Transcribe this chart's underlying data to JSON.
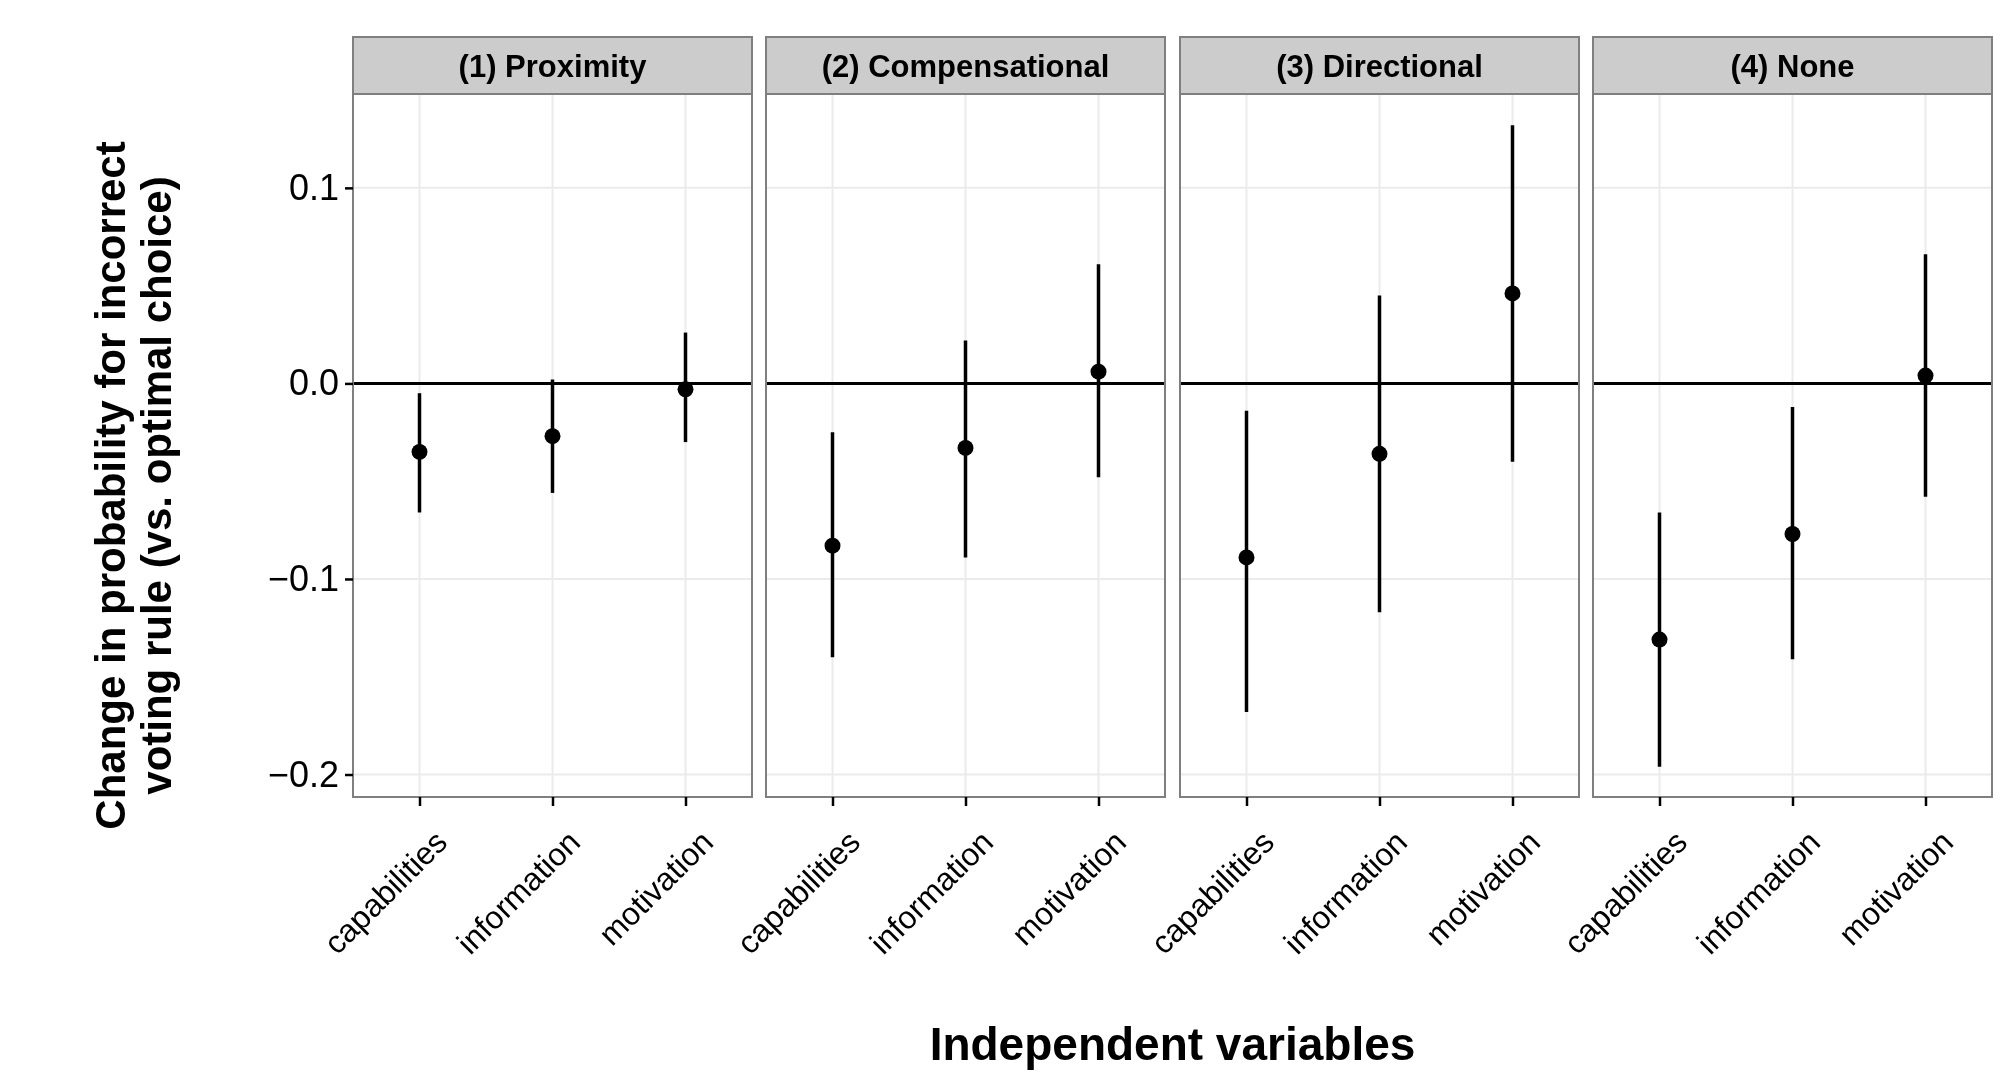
{
  "chart_data": [
    {
      "type": "scatter",
      "title": "(1) Proximity",
      "xlabel": "Independent variables",
      "ylabel": "Change in probability for incorrect\nvoting rule (vs. optimal choice)",
      "categories": [
        "capabilities",
        "information",
        "motivation"
      ],
      "series": [
        {
          "color": "#000000",
          "values": [
            -0.035,
            -0.027,
            -0.003
          ],
          "errors": [
            [
              -0.066,
              -0.005
            ],
            [
              -0.056,
              0.002
            ],
            [
              -0.03,
              0.026
            ]
          ]
        }
      ],
      "ylim": [
        -0.2115,
        0.148
      ],
      "yticks": [
        {
          "value": -0.2,
          "label": "−0.2"
        },
        {
          "value": -0.1,
          "label": "−0.1"
        },
        {
          "value": 0,
          "label": "0.0"
        },
        0.1
      ],
      "ref_lines": [
        {
          "axis": "y",
          "value": 0,
          "color": "#000000"
        }
      ],
      "grid": true,
      "marker": "circle"
    },
    {
      "type": "scatter",
      "title": "(2) Compensational",
      "categories": [
        "capabilities",
        "information",
        "motivation"
      ],
      "series": [
        {
          "color": "#000000",
          "values": [
            -0.083,
            -0.033,
            0.006
          ],
          "errors": [
            [
              -0.14,
              -0.025
            ],
            [
              -0.089,
              0.022
            ],
            [
              -0.048,
              0.061
            ]
          ]
        }
      ],
      "ylim": [
        -0.2115,
        0.148
      ],
      "yticks": [
        {
          "value": -0.2,
          "label": null
        },
        {
          "value": -0.1,
          "label": null
        },
        {
          "value": 0,
          "label": null
        },
        {
          "value": 0.1,
          "label": null
        }
      ],
      "tick_labels": "x",
      "ref_lines": [
        {
          "axis": "y",
          "value": 0,
          "color": "#000000"
        }
      ],
      "grid": true,
      "marker": "circle"
    },
    {
      "type": "scatter",
      "title": "(3) Directional",
      "categories": [
        "capabilities",
        "information",
        "motivation"
      ],
      "series": [
        {
          "color": "#000000",
          "values": [
            -0.089,
            -0.036,
            0.046
          ],
          "errors": [
            [
              -0.168,
              -0.014
            ],
            [
              -0.117,
              0.045
            ],
            [
              -0.04,
              0.132
            ]
          ]
        }
      ],
      "ylim": [
        -0.2115,
        0.148
      ],
      "yticks": [
        {
          "value": -0.2,
          "label": null
        },
        {
          "value": -0.1,
          "label": null
        },
        {
          "value": 0,
          "label": null
        },
        {
          "value": 0.1,
          "label": null
        }
      ],
      "tick_labels": "x",
      "ref_lines": [
        {
          "axis": "y",
          "value": 0,
          "color": "#000000"
        }
      ],
      "grid": true,
      "marker": "circle"
    },
    {
      "type": "scatter",
      "title": "(4) None",
      "categories": [
        "capabilities",
        "information",
        "motivation"
      ],
      "series": [
        {
          "color": "#000000",
          "values": [
            -0.131,
            -0.077,
            0.004
          ],
          "errors": [
            [
              -0.196,
              -0.066
            ],
            [
              -0.141,
              -0.012
            ],
            [
              -0.058,
              0.066
            ]
          ]
        }
      ],
      "ylim": [
        -0.2115,
        0.148
      ],
      "yticks": [
        {
          "value": -0.2,
          "label": null
        },
        {
          "value": -0.1,
          "label": null
        },
        {
          "value": 0,
          "label": null
        },
        {
          "value": 0.1,
          "label": null
        }
      ],
      "tick_labels": "x",
      "ref_lines": [
        {
          "axis": "y",
          "value": 0,
          "color": "#000000"
        }
      ],
      "grid": true,
      "marker": "circle"
    }
  ]
}
